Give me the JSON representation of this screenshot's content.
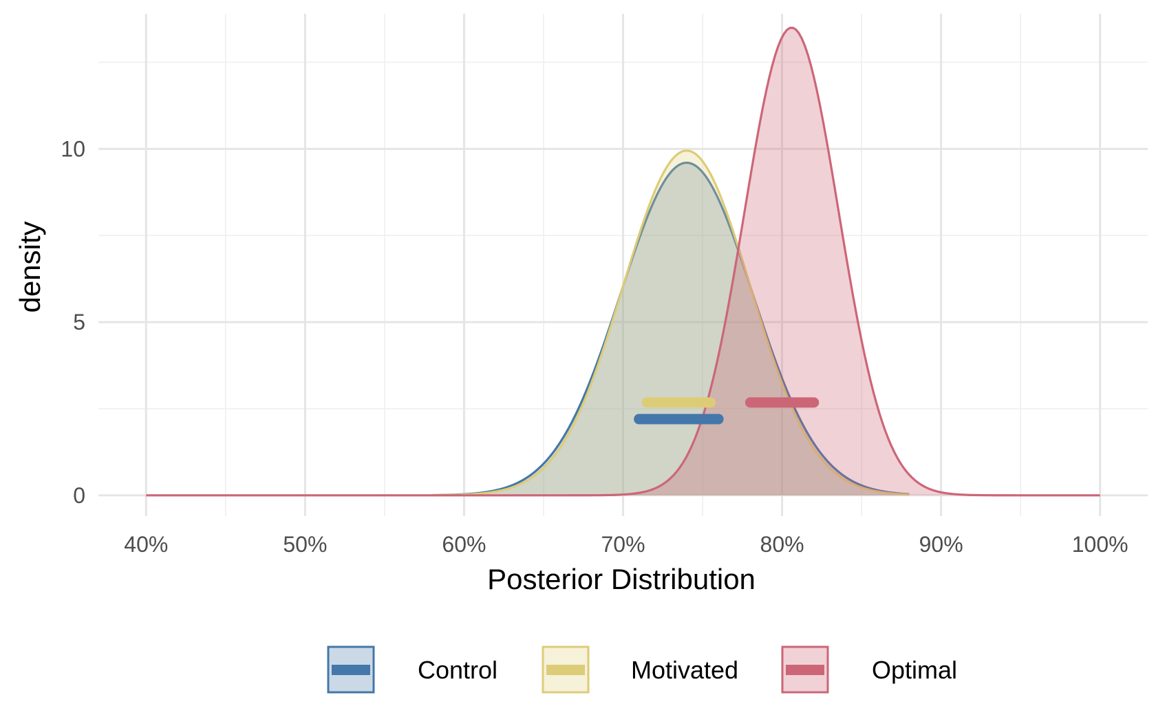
{
  "chart_data": {
    "type": "area",
    "subtype": "density",
    "xlabel": "Posterior Distribution",
    "ylabel": "density",
    "xlim": [
      0.37,
      1.03
    ],
    "ylim": [
      -0.6,
      13.9
    ],
    "x_ticks": [
      0.4,
      0.5,
      0.6,
      0.7,
      0.8,
      0.9,
      1.0
    ],
    "x_tick_labels": [
      "40%",
      "50%",
      "60%",
      "70%",
      "80%",
      "90%",
      "100%"
    ],
    "y_ticks": [
      0,
      5,
      10
    ],
    "y_tick_labels": [
      "0",
      "5",
      "10"
    ],
    "grid": true,
    "legend_position": "bottom",
    "series": [
      {
        "name": "Control",
        "color": "#4477aa",
        "fill": "#4477aa",
        "fill_opacity": 0.28,
        "x_range": [
          0.58,
          0.88
        ],
        "peak": {
          "x": 0.74,
          "y": 9.6
        },
        "sd": 0.0415,
        "interval": [
          0.71,
          0.76
        ],
        "interval_y": 2.2
      },
      {
        "name": "Motivated",
        "color": "#ddcc77",
        "fill": "#ddcc77",
        "fill_opacity": 0.28,
        "x_range": [
          0.58,
          0.88
        ],
        "peak": {
          "x": 0.74,
          "y": 9.95
        },
        "sd": 0.04,
        "interval": [
          0.715,
          0.755
        ],
        "interval_y": 2.68
      },
      {
        "name": "Optimal",
        "color": "#cc6677",
        "fill": "#cc6677",
        "fill_opacity": 0.3,
        "x_range": [
          0.4,
          1.0
        ],
        "peak": {
          "x": 0.806,
          "y": 13.5
        },
        "sd": 0.0296,
        "interval": [
          0.78,
          0.82
        ],
        "interval_y": 2.68
      }
    ]
  }
}
